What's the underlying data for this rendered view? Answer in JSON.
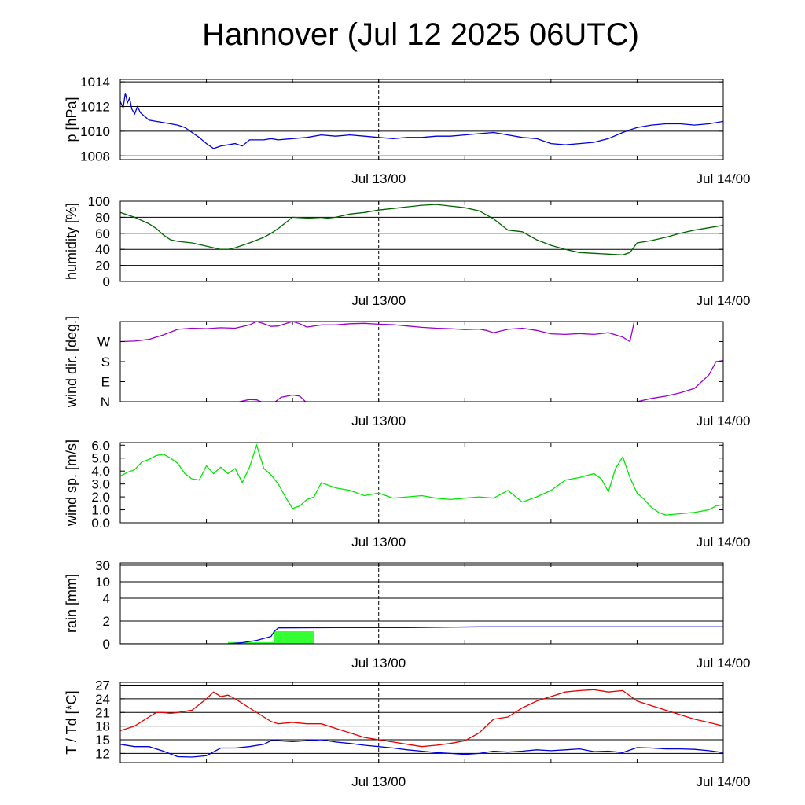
{
  "title": "Hannover (Jul 12 2025 06UTC)",
  "chart_data": [
    {
      "type": "line",
      "ylabel": "p [hPa]",
      "x_unit": "hours since Jul 12 06UTC",
      "xlim": [
        0,
        42
      ],
      "ylim": [
        1007.7,
        1014.2
      ],
      "yticks": [
        1008,
        1010,
        1012,
        1014
      ],
      "ytick_labels": [
        "1008",
        "1010",
        "1012",
        "1014"
      ],
      "grid_y": [
        1008,
        1010,
        1012,
        1014
      ],
      "xtick_labels": [
        {
          "x": 18,
          "label": "Jul 13/00"
        },
        {
          "x": 42,
          "label": "Jul 14/00"
        }
      ],
      "series": [
        {
          "color": "#0000dd",
          "x": [
            0,
            0.2,
            0.35,
            0.5,
            0.65,
            0.8,
            1.0,
            1.2,
            1.4,
            1.6,
            1.8,
            2,
            2.5,
            3,
            3.5,
            4,
            4.5,
            5,
            5.5,
            6,
            6.5,
            7,
            7.5,
            8,
            8.5,
            9,
            9.5,
            10,
            10.5,
            11,
            12,
            13,
            14,
            15,
            16,
            17,
            18,
            19,
            20,
            21,
            22,
            23,
            24,
            25,
            26,
            27,
            28,
            29,
            30,
            31,
            32,
            33,
            34,
            35,
            35.5,
            36,
            37,
            38,
            39,
            40,
            41,
            42
          ],
          "y": [
            1012.4,
            1011.9,
            1013.1,
            1012.3,
            1012.7,
            1011.8,
            1011.4,
            1012.0,
            1011.5,
            1011.3,
            1011.1,
            1010.9,
            1010.8,
            1010.7,
            1010.6,
            1010.5,
            1010.3,
            1009.9,
            1009.5,
            1009.0,
            1008.6,
            1008.8,
            1008.9,
            1009.0,
            1008.8,
            1009.3,
            1009.3,
            1009.3,
            1009.4,
            1009.3,
            1009.4,
            1009.5,
            1009.7,
            1009.6,
            1009.7,
            1009.6,
            1009.5,
            1009.4,
            1009.5,
            1009.5,
            1009.6,
            1009.6,
            1009.7,
            1009.8,
            1009.9,
            1009.7,
            1009.5,
            1009.4,
            1009.0,
            1008.9,
            1009.0,
            1009.1,
            1009.4,
            1009.9,
            1010.1,
            1010.3,
            1010.5,
            1010.6,
            1010.6,
            1010.5,
            1010.6,
            1010.8
          ]
        }
      ]
    },
    {
      "type": "line",
      "ylabel": "humidity [%]",
      "x_unit": "hours since Jul 12 06UTC",
      "xlim": [
        0,
        42
      ],
      "ylim": [
        0,
        100
      ],
      "yticks": [
        0,
        20,
        40,
        60,
        80,
        100
      ],
      "ytick_labels": [
        "0",
        "20",
        "40",
        "60",
        "80",
        "100"
      ],
      "grid_y": [
        20,
        40,
        60,
        80
      ],
      "xtick_labels": [
        {
          "x": 18,
          "label": "Jul 13/00"
        },
        {
          "x": 42,
          "label": "Jul 14/00"
        }
      ],
      "series": [
        {
          "color": "#006400",
          "x": [
            0,
            1,
            2,
            2.5,
            3,
            3.5,
            4,
            5,
            6,
            7,
            7.5,
            8,
            9,
            10,
            10.5,
            11,
            12,
            13,
            14,
            15,
            16,
            17,
            18,
            19,
            20,
            21,
            22,
            23,
            24,
            25,
            26,
            27,
            28,
            29,
            30,
            31,
            32,
            33,
            34,
            35,
            35.5,
            36,
            37,
            38,
            39,
            40,
            41,
            42
          ],
          "y": [
            86,
            80,
            72,
            66,
            58,
            52,
            50,
            48,
            44,
            40,
            40,
            42,
            48,
            55,
            60,
            66,
            80,
            79,
            78,
            80,
            84,
            86,
            89,
            91,
            93,
            95,
            96,
            94,
            92,
            88,
            78,
            64,
            62,
            52,
            45,
            40,
            36,
            35,
            34,
            33,
            36,
            48,
            51,
            55,
            60,
            64,
            67,
            70
          ]
        }
      ]
    },
    {
      "type": "line",
      "ylabel": "wind dir. [deg.]",
      "x_unit": "hours since Jul 12 06UTC",
      "xlim": [
        0,
        42
      ],
      "ylim": [
        0,
        360
      ],
      "yticks": [
        0,
        90,
        180,
        270
      ],
      "ytick_labels": [
        "N",
        "E",
        "S",
        "W"
      ],
      "grid_y": [],
      "xtick_labels": [
        {
          "x": 18,
          "label": "Jul 13/00"
        },
        {
          "x": 42,
          "label": "Jul 14/00"
        }
      ],
      "series": [
        {
          "color": "#9900cc",
          "x": [
            0,
            1,
            2,
            3,
            4,
            5,
            6,
            7,
            8,
            9,
            9.5,
            10,
            10.5,
            11,
            11.5,
            12,
            12.5,
            13,
            14,
            15,
            16,
            17,
            18,
            19,
            20,
            21,
            22,
            23,
            24,
            25,
            25.5,
            26,
            27,
            28,
            29,
            30,
            31,
            32,
            33,
            34,
            35,
            35.5,
            35.8
          ],
          "y": [
            270,
            272,
            280,
            300,
            325,
            330,
            328,
            332,
            330,
            345,
            360,
            350,
            338,
            340,
            350,
            360,
            350,
            335,
            345,
            345,
            350,
            352,
            348,
            346,
            340,
            334,
            330,
            328,
            324,
            326,
            320,
            310,
            325,
            330,
            320,
            305,
            302,
            306,
            302,
            310,
            290,
            270,
            360
          ]
        },
        {
          "color": "#9900cc",
          "x": [
            8.3,
            9,
            9.5,
            9.8
          ],
          "y": [
            0,
            10,
            8,
            0
          ]
        },
        {
          "color": "#9900cc",
          "x": [
            10.8,
            11.2,
            12,
            12.5,
            12.9
          ],
          "y": [
            0,
            20,
            30,
            25,
            0
          ]
        },
        {
          "color": "#9900cc",
          "x": [
            36,
            37,
            38,
            39,
            40,
            41,
            41.5,
            42
          ],
          "y": [
            0,
            15,
            25,
            40,
            60,
            120,
            180,
            185
          ]
        }
      ]
    },
    {
      "type": "line",
      "ylabel": "wind sp. [m/s]",
      "x_unit": "hours since Jul 12 06UTC",
      "xlim": [
        0,
        42
      ],
      "ylim": [
        0,
        6.2
      ],
      "yticks": [
        0,
        1,
        2,
        3,
        4,
        5,
        6
      ],
      "ytick_labels": [
        "0.0",
        "1.0",
        "2.0",
        "3.0",
        "4.0",
        "5.0",
        "6.0"
      ],
      "grid_y": [],
      "xtick_labels": [
        {
          "x": 18,
          "label": "Jul 13/00"
        },
        {
          "x": 42,
          "label": "Jul 14/00"
        }
      ],
      "series": [
        {
          "color": "#00e600",
          "x": [
            0,
            0.5,
            1,
            1.5,
            2,
            2.5,
            3,
            3.5,
            4,
            4.5,
            5,
            5.5,
            6,
            6.5,
            7,
            7.5,
            8,
            8.5,
            9,
            9.5,
            10,
            10.5,
            11,
            11.5,
            12,
            12.5,
            13,
            13.5,
            14,
            15,
            16,
            17,
            18,
            19,
            20,
            21,
            22,
            23,
            24,
            25,
            26,
            27,
            28,
            29,
            30,
            31,
            32,
            33,
            33.5,
            34,
            34.5,
            35,
            35.5,
            36,
            36.5,
            37,
            37.5,
            38,
            39,
            40,
            41,
            41.5,
            42
          ],
          "y": [
            3.6,
            3.9,
            4.1,
            4.7,
            4.9,
            5.2,
            5.3,
            5.0,
            4.6,
            3.8,
            3.4,
            3.3,
            4.4,
            3.8,
            4.3,
            3.8,
            4.2,
            3.1,
            4.3,
            6.0,
            4.2,
            3.7,
            3.0,
            2.0,
            1.1,
            1.3,
            1.8,
            2.0,
            3.1,
            2.7,
            2.5,
            2.1,
            2.3,
            1.9,
            2.0,
            2.1,
            1.9,
            1.8,
            1.9,
            2.0,
            1.9,
            2.5,
            1.6,
            2.0,
            2.5,
            3.3,
            3.5,
            3.8,
            3.4,
            2.4,
            4.2,
            5.1,
            3.5,
            2.3,
            1.8,
            1.2,
            0.8,
            0.6,
            0.7,
            0.8,
            1.0,
            1.3,
            1.4
          ]
        }
      ]
    },
    {
      "type": "area",
      "ylabel": "rain [mm]",
      "x_unit": "hours since Jul 12 06UTC",
      "xlim": [
        0,
        42
      ],
      "yticks": [
        0,
        2,
        4,
        10,
        30
      ],
      "ytick_labels": [
        "0",
        "2",
        "4",
        "10",
        "30"
      ],
      "grid_y": [
        2,
        4,
        10,
        30
      ],
      "xtick_labels": [
        {
          "x": 18,
          "label": "Jul 13/00"
        },
        {
          "x": 42,
          "label": "Jul 14/00"
        }
      ],
      "bars": [
        {
          "color": "#33ff33",
          "x0": 7.5,
          "x1": 10.7,
          "value": 0.15
        },
        {
          "color": "#33ff33",
          "x0": 10.7,
          "x1": 13.5,
          "value": 1.1
        }
      ],
      "series": [
        {
          "color": "#0000dd",
          "x": [
            0,
            7.5,
            8.5,
            9.5,
            10.5,
            10.7,
            11,
            15,
            20,
            25,
            30,
            35,
            42
          ],
          "y": [
            0,
            0,
            0.1,
            0.3,
            0.65,
            1.05,
            1.4,
            1.42,
            1.42,
            1.5,
            1.5,
            1.5,
            1.5
          ]
        }
      ]
    },
    {
      "type": "line",
      "ylabel": "T / Td [*C]",
      "x_unit": "hours since Jul 12 06UTC",
      "xlim": [
        0,
        42
      ],
      "ylim": [
        10,
        27.6
      ],
      "yticks": [
        12,
        15,
        18,
        21,
        24,
        27
      ],
      "ytick_labels": [
        "12",
        "15",
        "18",
        "21",
        "24",
        "27"
      ],
      "grid_y": [
        12,
        15,
        18,
        21,
        24,
        27
      ],
      "xtick_labels": [
        {
          "x": 18,
          "label": "Jul 13/00"
        },
        {
          "x": 42,
          "label": "Jul 14/00"
        }
      ],
      "series": [
        {
          "color": "#e60000",
          "x": [
            0,
            1,
            2,
            2.5,
            3,
            3.5,
            4,
            5,
            6,
            6.5,
            7,
            7.5,
            8,
            9,
            10,
            10.5,
            11,
            12,
            13,
            14,
            15,
            16,
            17,
            18,
            19,
            20,
            21,
            22,
            23,
            24,
            25,
            26,
            27,
            28,
            29,
            30,
            31,
            32,
            33,
            34,
            35,
            36,
            37,
            38,
            39,
            40,
            41,
            42
          ],
          "y": [
            17,
            18,
            20,
            21,
            21,
            20.8,
            21,
            21.5,
            24,
            25.5,
            24.5,
            24.8,
            24,
            22,
            20,
            19,
            18.5,
            18.8,
            18.5,
            18.5,
            17.5,
            16.5,
            15.5,
            15,
            14.5,
            14,
            13.5,
            13.8,
            14.2,
            14.8,
            16.5,
            19.5,
            20,
            22,
            23.5,
            24.5,
            25.5,
            25.8,
            26,
            25.5,
            25.8,
            23.5,
            22.5,
            21.5,
            20.5,
            19.5,
            18.8,
            18
          ]
        },
        {
          "color": "#0000dd",
          "x": [
            0,
            1,
            2,
            3,
            4,
            5,
            6,
            7,
            8,
            9,
            10,
            10.5,
            11,
            12,
            13,
            14,
            15,
            16,
            17,
            18,
            19,
            20,
            21,
            22,
            23,
            24,
            25,
            26,
            27,
            28,
            29,
            30,
            31,
            32,
            33,
            34,
            35,
            36,
            37,
            38,
            39,
            40,
            41,
            42
          ],
          "y": [
            14,
            13.5,
            13.5,
            12.5,
            11.3,
            11.2,
            11.5,
            13.2,
            13.2,
            13.5,
            14,
            14.8,
            14.8,
            14.6,
            14.8,
            15,
            14.5,
            14.2,
            13.8,
            13.5,
            13.2,
            12.8,
            12.5,
            12.2,
            12,
            11.8,
            12,
            12.5,
            12.3,
            12.5,
            12.8,
            12.6,
            12.8,
            13,
            12.4,
            12.5,
            12.2,
            13.3,
            13.2,
            13,
            13,
            12.9,
            12.6,
            12.2
          ]
        }
      ]
    }
  ]
}
